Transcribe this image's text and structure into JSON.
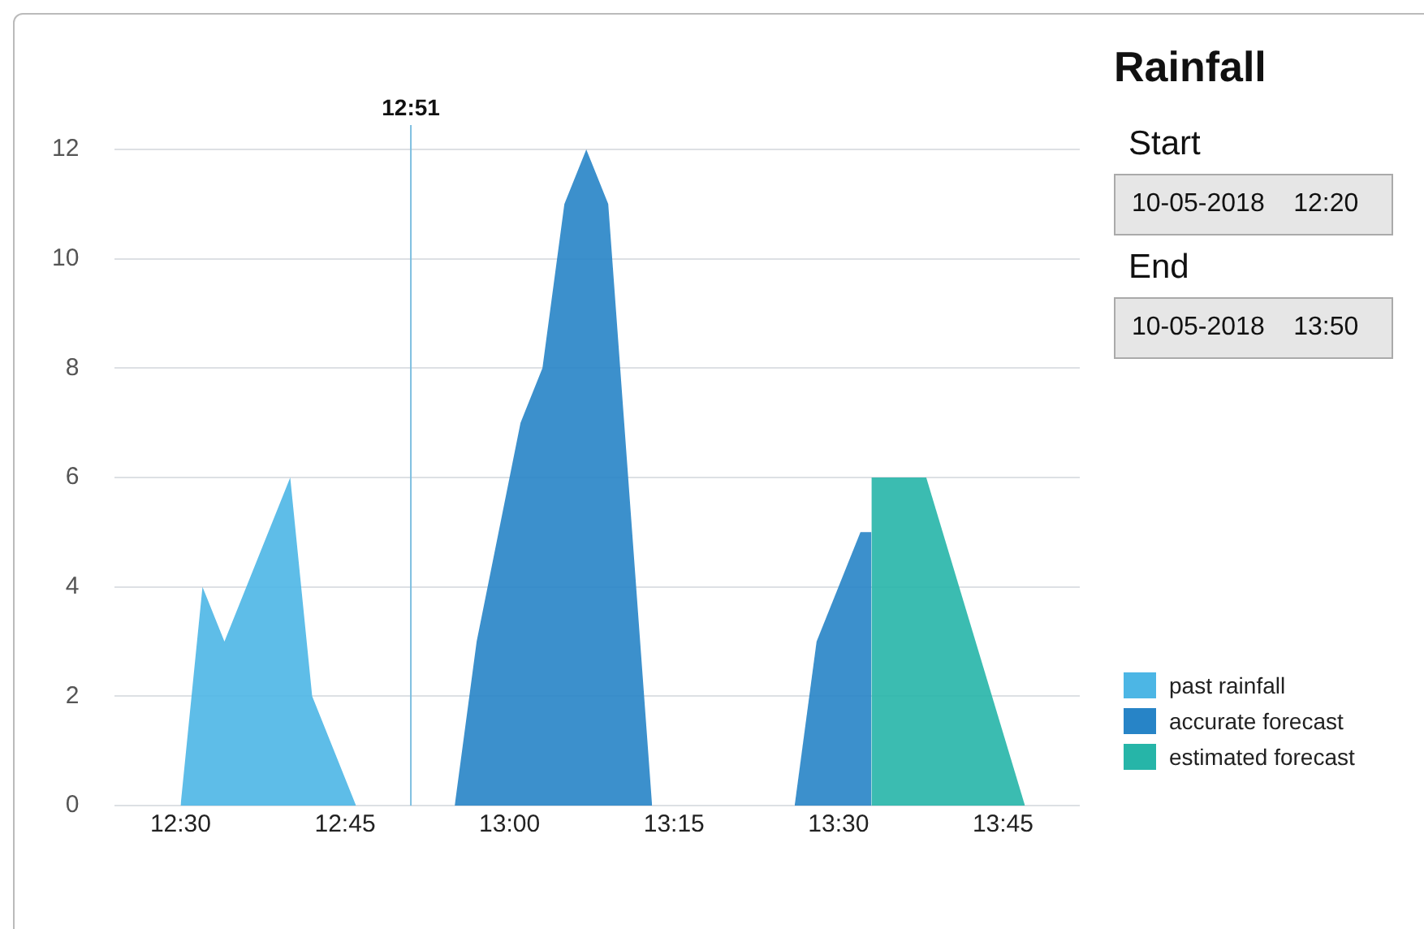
{
  "chart_data": {
    "type": "area",
    "title": "Rainfall",
    "annotations": [
      "Start",
      "10-05-2018    12:20",
      "End",
      "10-05-2018    13:50"
    ],
    "series": [
      {
        "name": "past rainfall",
        "color": "#4cb6e5",
        "x": [
          "2018-05-10T12:30",
          "2018-05-10T12:32",
          "2018-05-10T12:34",
          "2018-05-10T12:40",
          "2018-05-10T12:42",
          "2018-05-10T12:46"
        ],
        "values": [
          0,
          4,
          3,
          6,
          2,
          0
        ]
      },
      {
        "name": "accurate forecast",
        "color": "#2784c7",
        "x": [
          "2018-05-10T12:55",
          "2018-05-10T12:57",
          "2018-05-10T13:01",
          "2018-05-10T13:03",
          "2018-05-10T13:05",
          "2018-05-10T13:07",
          "2018-05-10T13:09",
          "2018-05-10T13:13",
          "2018-05-10T13:20",
          "2018-05-10T13:26",
          "2018-05-10T13:28",
          "2018-05-10T13:32",
          "2018-05-10T13:33",
          "2018-05-10T13:33"
        ],
        "values": [
          0,
          3,
          7,
          8,
          11,
          12,
          11,
          0,
          null,
          0,
          3,
          5,
          5,
          0
        ]
      },
      {
        "name": "estimated forecast",
        "color": "#26b5a8",
        "x": [
          "2018-05-10T13:33",
          "2018-05-10T13:33",
          "2018-05-10T13:38",
          "2018-05-10T13:47"
        ],
        "values": [
          0,
          6,
          6,
          0
        ]
      }
    ],
    "xlim": [
      "2018-05-10T12:24",
      "2018-05-10T13:52"
    ],
    "xticks": [
      {
        "value": "2018-05-10T12:30",
        "label": "12:30"
      },
      {
        "value": "2018-05-10T12:45",
        "label": "12:45"
      },
      {
        "value": "2018-05-10T13:00",
        "label": "13:00"
      },
      {
        "value": "2018-05-10T13:15",
        "label": "13:15"
      },
      {
        "value": "2018-05-10T13:30",
        "label": "13:30"
      },
      {
        "value": "2018-05-10T13:45",
        "label": "13:45"
      }
    ],
    "ylim": [
      0,
      12
    ],
    "yticks": [
      0,
      2,
      4,
      6,
      8,
      10,
      12
    ],
    "ref_lines": [
      {
        "axis": "x",
        "value": "2018-05-10T12:51",
        "label": "12:51",
        "color": "#7fbfe0"
      }
    ],
    "grid": "y",
    "legend": "bottom right"
  }
}
